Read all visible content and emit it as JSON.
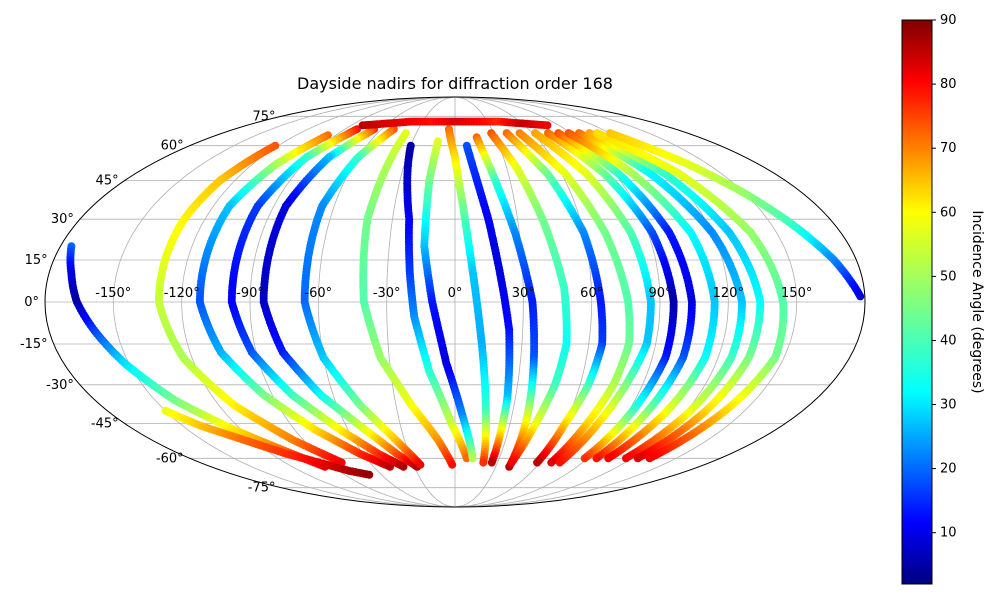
{
  "chart_data": {
    "type": "scatter",
    "projection": "mollweide",
    "title": "Dayside nadirs for diffraction order 168",
    "xlabel": "",
    "ylabel": "",
    "grid": true,
    "xlim": [
      -180,
      180
    ],
    "ylim": [
      -90,
      90
    ],
    "lon_tick_labels": [
      "-150°",
      "-120°",
      "-90°",
      "-60°",
      "-30°",
      "0°",
      "30°",
      "60°",
      "90°",
      "120°",
      "150°"
    ],
    "lon_ticks": [
      -150,
      -120,
      -90,
      -60,
      -30,
      0,
      30,
      60,
      90,
      120,
      150
    ],
    "lat_tick_labels": [
      "-75°",
      "-60°",
      "-45°",
      "-30°",
      "-15°",
      "0°",
      "15°",
      "30°",
      "45°",
      "60°",
      "75°"
    ],
    "lat_ticks": [
      -75,
      -60,
      -45,
      -30,
      -15,
      0,
      15,
      30,
      45,
      60,
      75
    ],
    "colorbar": {
      "label": "Incidence Angle (degrees)",
      "colormap": "jet",
      "range": [
        2,
        90
      ],
      "ticks": [
        10,
        20,
        30,
        40,
        50,
        60,
        70,
        80,
        90
      ],
      "tick_labels": [
        "10",
        "20",
        "30",
        "40",
        "50",
        "60",
        "70",
        "80",
        "90"
      ]
    },
    "series": [
      {
        "x": [
          -175,
          -170,
          -166,
          -160,
          -152,
          -140,
          -125,
          -108,
          -96
        ],
        "y": [
          20,
          10,
          0,
          -10,
          -22,
          -36,
          -47,
          -57,
          -64
        ],
        "c": [
          22,
          10,
          5,
          18,
          32,
          45,
          58,
          70,
          82
        ]
      },
      {
        "x": [
          -122,
          -128,
          -130,
          -130,
          -124,
          -112,
          -96,
          -80
        ],
        "y": [
          60,
          45,
          30,
          0,
          -20,
          -38,
          -52,
          -62
        ],
        "c": [
          72,
          62,
          58,
          52,
          50,
          58,
          68,
          80
        ]
      },
      {
        "x": [
          -96,
          -106,
          -112,
          -112,
          -106,
          -94,
          -78,
          -62,
          -48
        ],
        "y": [
          65,
          52,
          35,
          0,
          -18,
          -34,
          -48,
          -58,
          -64
        ],
        "c": [
          70,
          50,
          30,
          20,
          28,
          45,
          60,
          75,
          85
        ]
      },
      {
        "x": [
          -80,
          -92,
          -98,
          -98,
          -92,
          -80,
          -64,
          -50,
          -38
        ],
        "y": [
          68,
          55,
          35,
          0,
          -18,
          -34,
          -48,
          -58,
          -64
        ],
        "c": [
          78,
          40,
          18,
          12,
          20,
          40,
          58,
          75,
          86
        ]
      },
      {
        "x": [
          -66,
          -78,
          -84,
          -84,
          -78,
          -66,
          -50,
          -38,
          -28
        ],
        "y": [
          68,
          55,
          35,
          0,
          -18,
          -34,
          -48,
          -58,
          -64
        ],
        "c": [
          75,
          30,
          10,
          8,
          15,
          35,
          55,
          72,
          86
        ]
      },
      {
        "x": [
          -50,
          -60,
          -66,
          -66,
          -60,
          -48,
          -35,
          -25
        ],
        "y": [
          68,
          55,
          35,
          0,
          -20,
          -38,
          -52,
          -63
        ],
        "c": [
          72,
          40,
          25,
          22,
          30,
          45,
          62,
          80
        ]
      },
      {
        "x": [
          -38,
          -40,
          -42,
          -40,
          -34,
          -22,
          -10,
          -2
        ],
        "y": [
          66,
          50,
          30,
          0,
          -20,
          -38,
          -52,
          -63
        ],
        "c": [
          55,
          50,
          45,
          42,
          48,
          56,
          66,
          78
        ]
      },
      {
        "x": [
          -30,
          -26,
          -22,
          -20,
          -18,
          -12,
          -2,
          8
        ],
        "y": [
          60,
          45,
          30,
          10,
          -5,
          -25,
          -45,
          -60
        ],
        "c": [
          5,
          8,
          12,
          18,
          25,
          38,
          52,
          70
        ]
      },
      {
        "x": [
          -12,
          -14,
          -14,
          -10,
          -4,
          4,
          12
        ],
        "y": [
          62,
          45,
          20,
          0,
          -22,
          -42,
          -60
        ],
        "c": [
          55,
          45,
          30,
          15,
          10,
          25,
          50
        ]
      },
      {
        "x": [
          -5,
          0,
          4,
          8,
          12,
          16,
          20
        ],
        "y": [
          68,
          55,
          35,
          10,
          -15,
          -40,
          -62
        ],
        "c": [
          70,
          60,
          45,
          30,
          28,
          40,
          75
        ]
      },
      {
        "x": [
          8,
          12,
          16,
          20,
          24,
          26,
          26
        ],
        "y": [
          60,
          45,
          30,
          10,
          -10,
          -35,
          -62
        ],
        "c": [
          20,
          16,
          12,
          10,
          14,
          30,
          85
        ]
      },
      {
        "x": [
          16,
          22,
          28,
          34,
          36,
          38,
          40
        ],
        "y": [
          64,
          45,
          25,
          0,
          -20,
          -40,
          -64
        ],
        "c": [
          70,
          40,
          25,
          15,
          20,
          50,
          85
        ]
      },
      {
        "x": [
          28,
          36,
          42,
          48,
          50,
          48,
          44,
          40
        ],
        "y": [
          66,
          50,
          30,
          5,
          -15,
          -30,
          -45,
          -62
        ],
        "c": [
          72,
          55,
          45,
          40,
          36,
          40,
          55,
          80
        ]
      },
      {
        "x": [
          40,
          52,
          60,
          64,
          66,
          64,
          60,
          58
        ],
        "y": [
          66,
          48,
          25,
          0,
          -15,
          -30,
          -45,
          -62
        ],
        "c": [
          70,
          45,
          25,
          15,
          18,
          40,
          60,
          85
        ]
      },
      {
        "x": [
          50,
          62,
          70,
          76,
          78,
          76,
          72,
          68
        ],
        "y": [
          66,
          48,
          25,
          0,
          -15,
          -30,
          -45,
          -62
        ],
        "c": [
          68,
          55,
          45,
          42,
          44,
          50,
          60,
          82
        ]
      },
      {
        "x": [
          62,
          74,
          82,
          86,
          86,
          82,
          78,
          74
        ],
        "y": [
          66,
          48,
          25,
          0,
          -15,
          -30,
          -45,
          -62
        ],
        "c": [
          65,
          55,
          42,
          30,
          30,
          45,
          60,
          78
        ]
      },
      {
        "x": [
          72,
          84,
          92,
          96,
          96,
          92,
          88
        ],
        "y": [
          66,
          48,
          25,
          0,
          -20,
          -40,
          -60
        ],
        "c": [
          70,
          45,
          20,
          5,
          15,
          40,
          75
        ]
      },
      {
        "x": [
          80,
          92,
          100,
          104,
          104,
          100,
          96
        ],
        "y": [
          66,
          48,
          25,
          0,
          -20,
          -40,
          -60
        ],
        "c": [
          72,
          40,
          15,
          10,
          20,
          45,
          78
        ]
      },
      {
        "x": [
          88,
          100,
          110,
          114,
          114,
          110,
          104
        ],
        "y": [
          66,
          48,
          25,
          0,
          -20,
          -40,
          -60
        ],
        "c": [
          72,
          50,
          35,
          30,
          35,
          55,
          80
        ]
      },
      {
        "x": [
          96,
          110,
          120,
          126,
          126,
          122,
          116
        ],
        "y": [
          66,
          48,
          25,
          0,
          -20,
          -40,
          -60
        ],
        "c": [
          70,
          35,
          25,
          30,
          40,
          55,
          80
        ]
      },
      {
        "x": [
          104,
          118,
          128,
          134,
          134,
          130,
          124
        ],
        "y": [
          66,
          48,
          25,
          0,
          -20,
          -40,
          -60
        ],
        "c": [
          65,
          40,
          30,
          35,
          45,
          60,
          82
        ]
      },
      {
        "x": [
          110,
          126,
          138,
          144,
          146,
          140,
          132
        ],
        "y": [
          66,
          48,
          25,
          0,
          -20,
          -40,
          -60
        ],
        "c": [
          60,
          55,
          48,
          42,
          45,
          60,
          80
        ]
      },
      {
        "x": [
          120,
          138,
          150,
          160,
          170,
          178
        ],
        "y": [
          66,
          52,
          40,
          28,
          15,
          2
        ],
        "c": [
          62,
          55,
          48,
          40,
          25,
          10
        ]
      },
      {
        "x": [
          -150,
          -140,
          -125,
          -110,
          -96,
          -82,
          -70
        ],
        "y": [
          -40,
          -46,
          -52,
          -58,
          -62,
          -66,
          -68
        ],
        "c": [
          55,
          62,
          70,
          75,
          80,
          86,
          88
        ]
      },
      {
        "x": [
          -80,
          -60,
          -40,
          -20,
          0,
          20,
          40,
          60,
          80
        ],
        "y": [
          70,
          71,
          72,
          72,
          72,
          72,
          72,
          71,
          70
        ],
        "c": [
          85,
          82,
          80,
          78,
          82,
          80,
          76,
          84,
          80
        ]
      }
    ]
  }
}
